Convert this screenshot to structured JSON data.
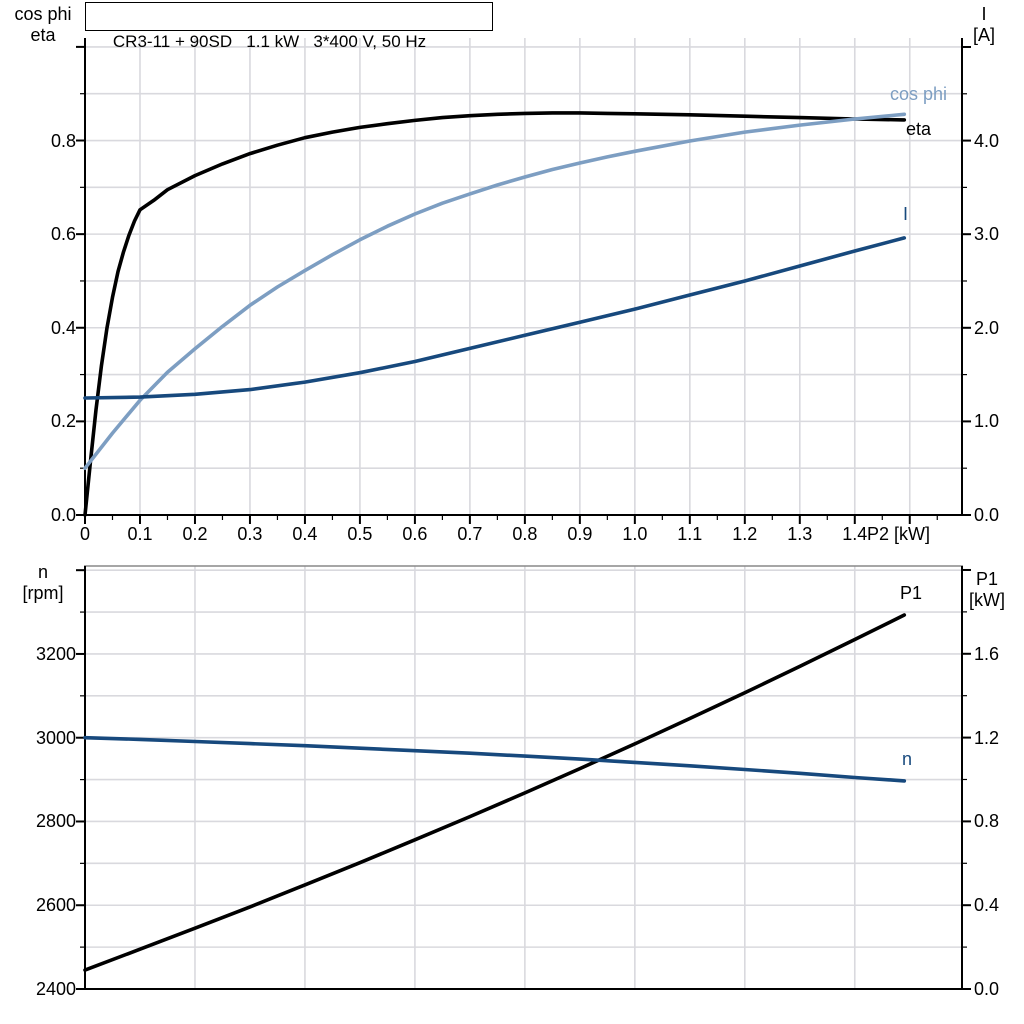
{
  "colors": {
    "black": "#000000",
    "light_blue": "#7d9ec2",
    "dark_blue": "#17497d",
    "grid": "#d9d9de",
    "frame_gray": "#888888"
  },
  "chart_data": [
    {
      "type": "line",
      "title": "CR3-11 + 90SD   1.1 kW   3*400 V, 50 Hz",
      "grid": true,
      "legend_position": "inline-curve-labels",
      "x": {
        "label": "P2 [kW]",
        "min": 0,
        "max": 1.595,
        "tick_values": [
          0,
          0.1,
          0.2,
          0.3,
          0.4,
          0.5,
          0.6,
          0.7,
          0.8,
          0.9,
          1.0,
          1.1,
          1.2,
          1.3,
          1.4
        ],
        "tick_labels": [
          "0",
          "0.1",
          "0.2",
          "0.3",
          "0.4",
          "0.5",
          "0.6",
          "0.7",
          "0.8",
          "0.9",
          "1.0",
          "1.1",
          "1.2",
          "1.3",
          "1.4"
        ],
        "major_step": 0.1,
        "minor_step": 0.05,
        "grid_step": 0.1,
        "major_tick_max": 1.5
      },
      "yl": {
        "title_lines": [
          "cos phi",
          "eta"
        ],
        "min": 0,
        "max": 1.019,
        "tick_values": [
          0,
          0.2,
          0.4,
          0.6,
          0.8
        ],
        "tick_labels": [
          "0.0",
          "0.2",
          "0.4",
          "0.6",
          "0.8"
        ],
        "major_step": 0.2,
        "minor_step": 0.1,
        "grid_step": 0.1
      },
      "yr": {
        "title_lines": [
          "I",
          "[A]"
        ],
        "min": 0,
        "max": 5.096,
        "tick_values": [
          0,
          1,
          2,
          3,
          4
        ],
        "tick_labels": [
          "0.0",
          "1.0",
          "2.0",
          "3.0",
          "4.0"
        ],
        "major_step": 1.0,
        "minor_step": 0.5
      },
      "series": [
        {
          "name": "eta",
          "label_text": "eta",
          "color": "#000000",
          "axis": "left",
          "points": [
            [
              0,
              0
            ],
            [
              0.01,
              0.115
            ],
            [
              0.02,
              0.225
            ],
            [
              0.03,
              0.32
            ],
            [
              0.04,
              0.4
            ],
            [
              0.05,
              0.465
            ],
            [
              0.06,
              0.52
            ],
            [
              0.07,
              0.562
            ],
            [
              0.08,
              0.598
            ],
            [
              0.09,
              0.628
            ],
            [
              0.1,
              0.652
            ],
            [
              0.125,
              0.672
            ],
            [
              0.15,
              0.695
            ],
            [
              0.2,
              0.725
            ],
            [
              0.25,
              0.75
            ],
            [
              0.3,
              0.772
            ],
            [
              0.35,
              0.79
            ],
            [
              0.4,
              0.806
            ],
            [
              0.45,
              0.818
            ],
            [
              0.5,
              0.828
            ],
            [
              0.55,
              0.836
            ],
            [
              0.6,
              0.843
            ],
            [
              0.65,
              0.849
            ],
            [
              0.7,
              0.853
            ],
            [
              0.75,
              0.856
            ],
            [
              0.8,
              0.858
            ],
            [
              0.85,
              0.859
            ],
            [
              0.9,
              0.859
            ],
            [
              0.95,
              0.858
            ],
            [
              1.0,
              0.857
            ],
            [
              1.1,
              0.855
            ],
            [
              1.2,
              0.852
            ],
            [
              1.3,
              0.849
            ],
            [
              1.4,
              0.846
            ],
            [
              1.49,
              0.844
            ]
          ]
        },
        {
          "name": "cos phi",
          "label_text": "cos phi",
          "color": "#7d9ec2",
          "axis": "left",
          "points": [
            [
              0,
              0.1
            ],
            [
              0.05,
              0.175
            ],
            [
              0.1,
              0.245
            ],
            [
              0.15,
              0.305
            ],
            [
              0.2,
              0.355
            ],
            [
              0.25,
              0.403
            ],
            [
              0.3,
              0.448
            ],
            [
              0.35,
              0.487
            ],
            [
              0.4,
              0.522
            ],
            [
              0.45,
              0.556
            ],
            [
              0.5,
              0.588
            ],
            [
              0.55,
              0.617
            ],
            [
              0.6,
              0.643
            ],
            [
              0.65,
              0.666
            ],
            [
              0.7,
              0.686
            ],
            [
              0.75,
              0.705
            ],
            [
              0.8,
              0.722
            ],
            [
              0.85,
              0.738
            ],
            [
              0.9,
              0.752
            ],
            [
              0.95,
              0.765
            ],
            [
              1.0,
              0.777
            ],
            [
              1.1,
              0.799
            ],
            [
              1.2,
              0.818
            ],
            [
              1.3,
              0.833
            ],
            [
              1.4,
              0.846
            ],
            [
              1.49,
              0.856
            ]
          ]
        },
        {
          "name": "I",
          "label_text": "I",
          "color": "#17497d",
          "axis": "right",
          "points": [
            [
              0,
              1.25
            ],
            [
              0.1,
              1.26
            ],
            [
              0.2,
              1.29
            ],
            [
              0.3,
              1.34
            ],
            [
              0.4,
              1.42
            ],
            [
              0.5,
              1.52
            ],
            [
              0.6,
              1.64
            ],
            [
              0.7,
              1.78
            ],
            [
              0.8,
              1.92
            ],
            [
              0.9,
              2.06
            ],
            [
              1.0,
              2.2
            ],
            [
              1.1,
              2.35
            ],
            [
              1.2,
              2.5
            ],
            [
              1.3,
              2.66
            ],
            [
              1.4,
              2.82
            ],
            [
              1.49,
              2.96
            ]
          ]
        }
      ]
    },
    {
      "type": "line",
      "title": "",
      "grid": true,
      "x": {
        "label": "",
        "min": 0,
        "max": 1.595,
        "tick_values": [],
        "tick_labels": [],
        "major_step": 0,
        "minor_step": 0,
        "grid_step": 0.2,
        "major_tick_max": 0
      },
      "yl": {
        "title_lines": [
          "n",
          "[rpm]"
        ],
        "min": 2400,
        "max": 3410,
        "tick_values": [
          2400,
          2600,
          2800,
          3000,
          3200
        ],
        "tick_labels": [
          "2400",
          "2600",
          "2800",
          "3000",
          "3200"
        ],
        "major_step": 200,
        "minor_step": 100,
        "grid_step": 100
      },
      "yr": {
        "title_lines": [
          "P1",
          "[kW]"
        ],
        "min": 0,
        "max": 2.019,
        "tick_values": [
          0,
          0.4,
          0.8,
          1.2,
          1.6
        ],
        "tick_labels": [
          "0.0",
          "0.4",
          "0.8",
          "1.2",
          "1.6"
        ],
        "major_step": 0.4,
        "minor_step": 0.2
      },
      "series": [
        {
          "name": "P1",
          "label_text": "P1",
          "color": "#000000",
          "axis": "right",
          "points": [
            [
              0,
              0.09
            ],
            [
              0.1,
              0.19
            ],
            [
              0.2,
              0.29
            ],
            [
              0.3,
              0.392
            ],
            [
              0.4,
              0.497
            ],
            [
              0.5,
              0.603
            ],
            [
              0.6,
              0.712
            ],
            [
              0.7,
              0.823
            ],
            [
              0.8,
              0.936
            ],
            [
              0.9,
              1.052
            ],
            [
              1.0,
              1.17
            ],
            [
              1.1,
              1.291
            ],
            [
              1.2,
              1.414
            ],
            [
              1.3,
              1.54
            ],
            [
              1.4,
              1.668
            ],
            [
              1.49,
              1.785
            ]
          ]
        },
        {
          "name": "n",
          "label_text": "n",
          "color": "#17497d",
          "axis": "left",
          "points": [
            [
              0,
              3000
            ],
            [
              0.1,
              2996
            ],
            [
              0.2,
              2991
            ],
            [
              0.3,
              2986
            ],
            [
              0.4,
              2981
            ],
            [
              0.5,
              2975
            ],
            [
              0.6,
              2969
            ],
            [
              0.7,
              2963
            ],
            [
              0.8,
              2956
            ],
            [
              0.9,
              2949
            ],
            [
              1.0,
              2941
            ],
            [
              1.1,
              2933
            ],
            [
              1.2,
              2924
            ],
            [
              1.3,
              2915
            ],
            [
              1.4,
              2905
            ],
            [
              1.49,
              2897
            ]
          ]
        }
      ]
    }
  ]
}
